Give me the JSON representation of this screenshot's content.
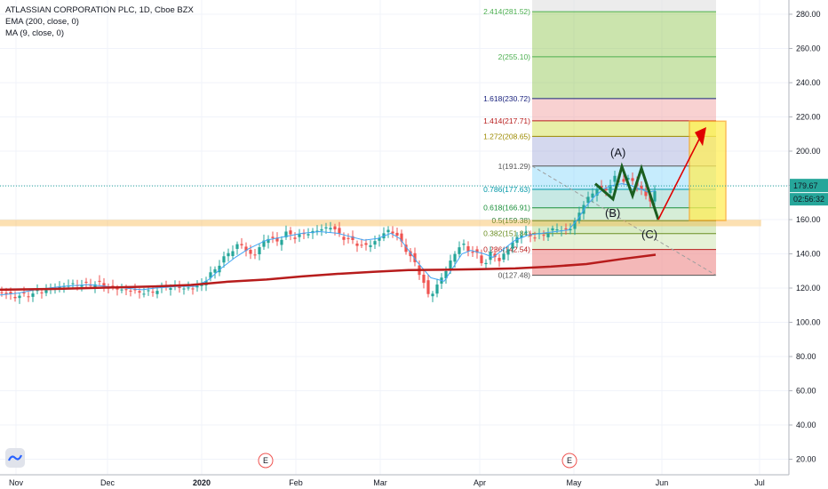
{
  "legend": {
    "title": "ATLASSIAN CORPORATION PLC, 1D, Cboe BZX",
    "ema": "EMA (200, close, 0)",
    "ma": "MA (9, close, 0)"
  },
  "price_badge": {
    "price": "179.67",
    "countdown": "02:56:32",
    "color": "#26a69a"
  },
  "earnings_marker": "E",
  "colors": {
    "up": "#26a69a",
    "down": "#ef5350",
    "ema": "#b71c1c",
    "ma": "#42a5f5",
    "zone": "#f9a825",
    "target_box": "#ffee58",
    "arrow": "#e00000",
    "wave": "#1b5e20"
  },
  "chart_data": {
    "type": "candlestick",
    "y_axis": {
      "ticks": [
        "20.00",
        "40.00",
        "60.00",
        "80.00",
        "100.00",
        "120.00",
        "140.00",
        "160.00",
        "180.00",
        "200.00",
        "220.00",
        "240.00",
        "260.00",
        "280.00"
      ],
      "ylim": [
        14,
        290
      ]
    },
    "x_axis": {
      "labels": [
        "Nov",
        "Dec",
        "2020",
        "Feb",
        "Mar",
        "Apr",
        "May",
        "Jun",
        "Jul"
      ]
    },
    "fib_levels": [
      {
        "label": "2.414(281.52)",
        "value": 281.52,
        "color": "#4caf50"
      },
      {
        "label": "2(255.10)",
        "value": 255.1,
        "color": "#4caf50"
      },
      {
        "label": "1.618(230.72)",
        "value": 230.72,
        "color": "#1a237e"
      },
      {
        "label": "1.414(217.71)",
        "value": 217.71,
        "color": "#b71c1c"
      },
      {
        "label": "1.272(208.65)",
        "value": 208.65,
        "color": "#9c8a00"
      },
      {
        "label": "1(191.29)",
        "value": 191.29,
        "color": "#555555"
      },
      {
        "label": "0.786(177.63)",
        "value": 177.63,
        "color": "#0097a7"
      },
      {
        "label": "0.618(166.91)",
        "value": 166.91,
        "color": "#1a8f3a"
      },
      {
        "label": "0.5(159.38)",
        "value": 159.38,
        "color": "#2e7d32"
      },
      {
        "label": "0.382(151.84)",
        "value": 151.84,
        "color": "#6b8e23"
      },
      {
        "label": "0.236(142.54)",
        "value": 142.54,
        "color": "#b71c1c"
      },
      {
        "label": "0(127.48)",
        "value": 127.48,
        "color": "#555555"
      }
    ],
    "wave_labels": [
      "(A)",
      "(B)",
      "(C)"
    ],
    "support_zone": [
      156.5,
      159.5
    ],
    "target_zone": [
      159.5,
      217.5
    ],
    "last_price": 179.67,
    "ema200": [
      [
        0,
        119
      ],
      [
        60,
        119.5
      ],
      [
        100,
        120
      ],
      [
        140,
        120.5
      ],
      [
        175,
        121
      ],
      [
        215,
        121.8
      ],
      [
        258,
        123.8
      ],
      [
        300,
        125
      ],
      [
        340,
        126.8
      ],
      [
        380,
        128.3
      ],
      [
        420,
        129.5
      ],
      [
        460,
        130.5
      ],
      [
        500,
        130.7
      ],
      [
        540,
        131
      ],
      [
        580,
        131.5
      ],
      [
        620,
        132.5
      ],
      [
        660,
        134
      ],
      [
        700,
        137
      ],
      [
        738,
        139.5
      ]
    ],
    "ma9": [
      [
        0,
        116
      ],
      [
        20,
        117
      ],
      [
        40,
        119
      ],
      [
        70,
        121
      ],
      [
        100,
        122
      ],
      [
        120,
        121
      ],
      [
        140,
        120
      ],
      [
        160,
        119
      ],
      [
        175,
        120
      ],
      [
        200,
        121
      ],
      [
        220,
        121
      ],
      [
        235,
        125
      ],
      [
        250,
        132
      ],
      [
        265,
        138
      ],
      [
        280,
        143
      ],
      [
        300,
        148
      ],
      [
        320,
        150
      ],
      [
        340,
        152
      ],
      [
        360,
        153
      ],
      [
        380,
        152
      ],
      [
        395,
        150
      ],
      [
        410,
        148
      ],
      [
        425,
        149
      ],
      [
        440,
        152
      ],
      [
        450,
        149
      ],
      [
        460,
        142
      ],
      [
        470,
        135
      ],
      [
        485,
        126
      ],
      [
        500,
        124
      ],
      [
        510,
        132
      ],
      [
        520,
        140
      ],
      [
        530,
        142
      ],
      [
        545,
        140
      ],
      [
        555,
        138
      ],
      [
        565,
        142
      ],
      [
        580,
        148
      ],
      [
        595,
        151
      ],
      [
        610,
        152
      ],
      [
        625,
        153
      ],
      [
        640,
        154
      ],
      [
        650,
        160
      ],
      [
        660,
        168
      ],
      [
        670,
        174
      ],
      [
        680,
        178
      ],
      [
        690,
        180
      ],
      [
        700,
        181
      ],
      [
        710,
        180
      ],
      [
        720,
        178
      ],
      [
        730,
        176
      ],
      [
        738,
        177
      ]
    ],
    "price_path": [
      [
        0,
        118
      ],
      [
        15,
        115
      ],
      [
        30,
        116
      ],
      [
        45,
        118
      ],
      [
        60,
        120
      ],
      [
        80,
        122
      ],
      [
        100,
        122
      ],
      [
        110,
        123
      ],
      [
        125,
        120
      ],
      [
        140,
        119
      ],
      [
        155,
        118
      ],
      [
        165,
        117
      ],
      [
        175,
        119
      ],
      [
        190,
        121
      ],
      [
        205,
        120
      ],
      [
        220,
        120
      ],
      [
        232,
        125
      ],
      [
        245,
        133
      ],
      [
        258,
        141
      ],
      [
        270,
        146
      ],
      [
        285,
        138
      ],
      [
        300,
        150
      ],
      [
        312,
        147
      ],
      [
        322,
        152
      ],
      [
        332,
        150
      ],
      [
        345,
        152
      ],
      [
        360,
        154
      ],
      [
        372,
        156
      ],
      [
        385,
        150
      ],
      [
        398,
        147
      ],
      [
        410,
        144
      ],
      [
        425,
        148
      ],
      [
        435,
        154
      ],
      [
        445,
        152
      ],
      [
        455,
        144
      ],
      [
        465,
        136
      ],
      [
        475,
        126
      ],
      [
        483,
        114
      ],
      [
        492,
        122
      ],
      [
        500,
        128
      ],
      [
        510,
        139
      ],
      [
        520,
        146
      ],
      [
        528,
        142
      ],
      [
        538,
        139
      ],
      [
        545,
        133
      ],
      [
        553,
        141
      ],
      [
        562,
        136
      ],
      [
        572,
        143
      ],
      [
        582,
        150
      ],
      [
        592,
        152
      ],
      [
        602,
        150
      ],
      [
        615,
        152
      ],
      [
        628,
        155
      ],
      [
        640,
        153
      ],
      [
        650,
        162
      ],
      [
        658,
        170
      ],
      [
        666,
        175
      ],
      [
        673,
        179
      ],
      [
        680,
        176
      ],
      [
        688,
        182
      ],
      [
        695,
        186
      ],
      [
        702,
        183
      ],
      [
        710,
        184
      ],
      [
        718,
        179
      ],
      [
        725,
        176
      ],
      [
        732,
        170
      ],
      [
        738,
        178
      ]
    ]
  }
}
